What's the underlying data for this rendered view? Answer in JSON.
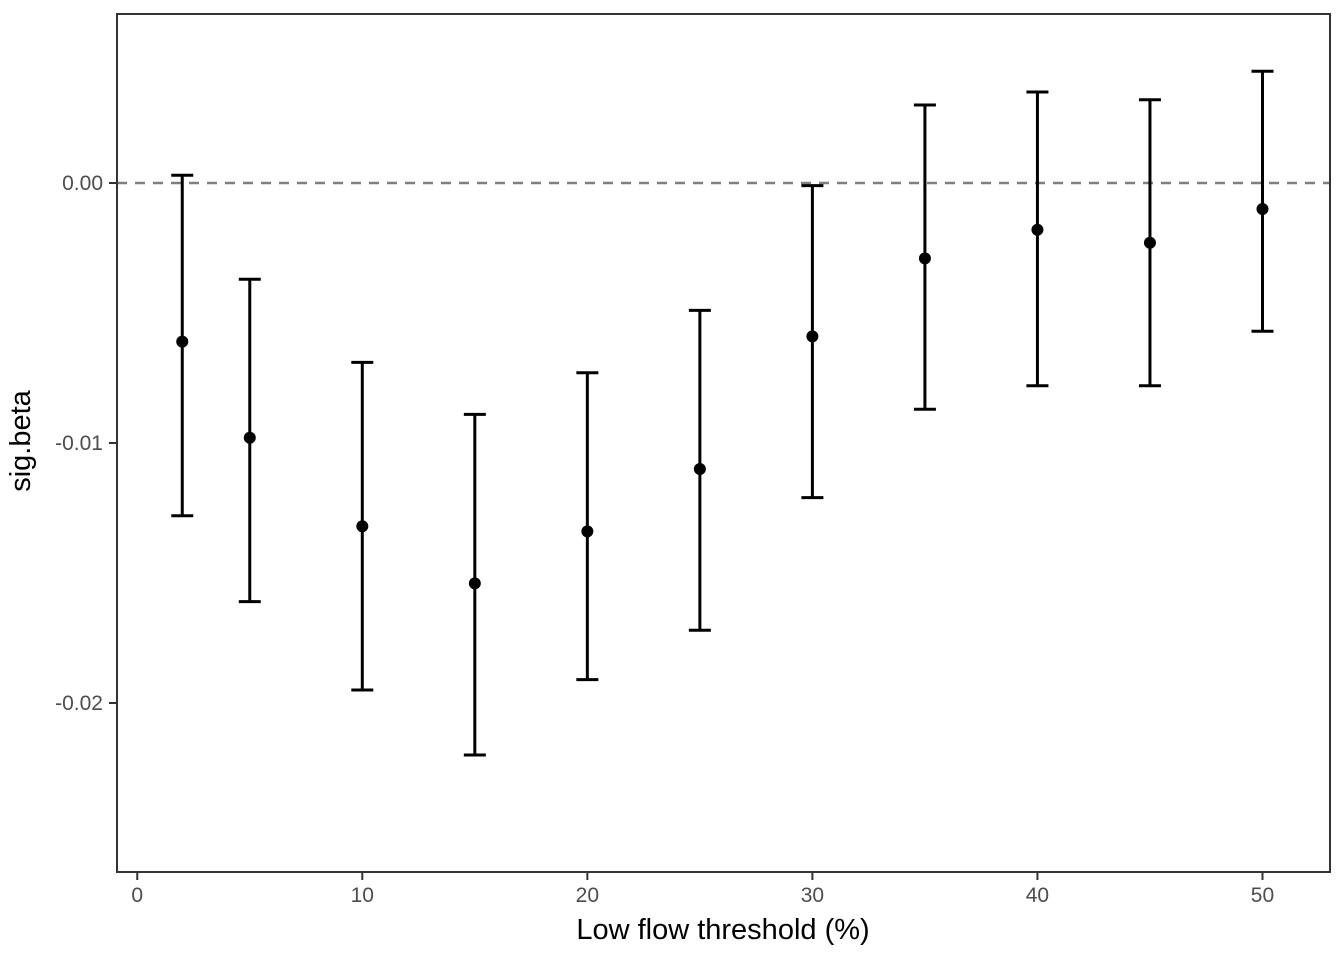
{
  "chart_data": {
    "type": "scatter",
    "subtype": "pointrange_errorbar",
    "title": "",
    "xlabel": "Low flow threshold (%)",
    "ylabel": "sig.beta",
    "x": [
      2,
      5,
      10,
      15,
      20,
      25,
      30,
      35,
      40,
      45,
      50
    ],
    "series": [
      {
        "name": "sig.beta",
        "values": [
          -0.0061,
          -0.0098,
          -0.0132,
          -0.0154,
          -0.0134,
          -0.011,
          -0.0059,
          -0.0029,
          -0.0018,
          -0.0023,
          -0.001
        ],
        "lower": [
          -0.0128,
          -0.0161,
          -0.0195,
          -0.022,
          -0.0191,
          -0.0172,
          -0.0121,
          -0.0087,
          -0.0078,
          -0.0078,
          -0.0057
        ],
        "upper": [
          0.0003,
          -0.0037,
          -0.0069,
          -0.0089,
          -0.0073,
          -0.0049,
          -0.0001,
          0.003,
          0.0035,
          0.0032,
          0.0043
        ]
      }
    ],
    "xticks": [
      0,
      10,
      20,
      30,
      40,
      50
    ],
    "xtick_labels": [
      "0",
      "10",
      "20",
      "30",
      "40",
      "50"
    ],
    "yticks": [
      0,
      -0.01,
      -0.02
    ],
    "ytick_labels": [
      "0.00",
      "-0.01",
      "-0.02"
    ],
    "xlim": [
      -0.9,
      53.0
    ],
    "ylim": [
      -0.0265,
      0.0065
    ],
    "reference_line": {
      "y": 0,
      "style": "dashed"
    },
    "grid": false,
    "legend": false,
    "colors": {
      "point": "#000000",
      "errorbar": "#000000",
      "reference_line": "#7f7f7f",
      "panel_border": "#333333",
      "tick_mark": "#333333",
      "tick_label": "#4d4d4d",
      "axis_title": "#000000",
      "background": "#ffffff"
    }
  }
}
